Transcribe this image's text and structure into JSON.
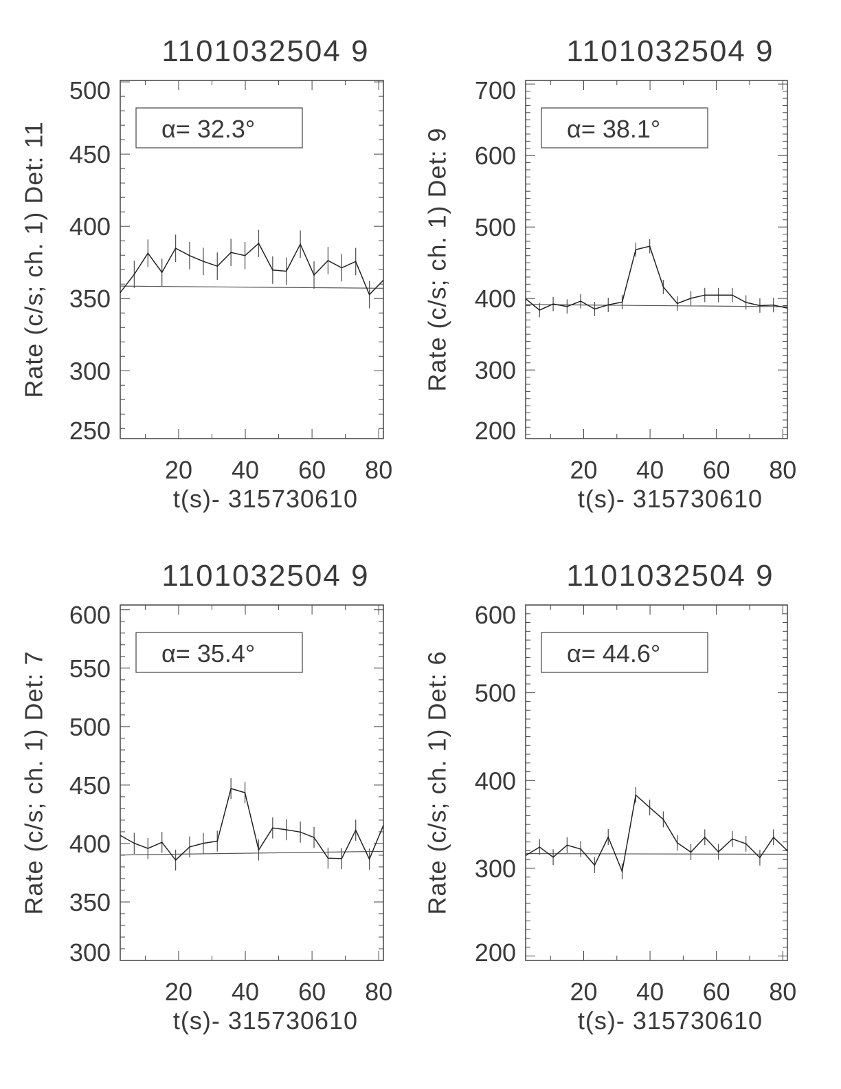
{
  "chart_data": [
    {
      "type": "line",
      "title": "1101032504 9",
      "xlabel": "t(s)- 315730610",
      "ylabel": "Rate (c/s; ch. 1) Det: 11",
      "legend": "α= 32.3°",
      "legend_placement": "top-left",
      "xlim": [
        2.5,
        81.4
      ],
      "ylim": [
        253,
        501
      ],
      "xticks": [
        20,
        40,
        60,
        80
      ],
      "yticks": [
        250,
        300,
        350,
        400,
        450,
        500
      ],
      "y_minor_step": 10,
      "x": [
        2.5,
        6.7,
        10.8,
        15.0,
        19.1,
        23.3,
        27.4,
        31.6,
        35.7,
        39.9,
        44.0,
        48.2,
        52.3,
        56.5,
        60.6,
        64.8,
        68.9,
        73.1,
        77.2,
        81.4
      ],
      "values": [
        354.1,
        366.7,
        381.4,
        368.1,
        384.8,
        379.7,
        375.7,
        372.4,
        381.9,
        379.7,
        388.2,
        369.7,
        368.9,
        387.6,
        366.3,
        376.3,
        371.3,
        375.6,
        352.7,
        362.7
      ],
      "error": 9.5,
      "background": [
        358.6,
        357.1
      ]
    },
    {
      "type": "line",
      "title": "1101032504 9",
      "xlabel": "t(s)- 315730610",
      "ylabel": "Rate (c/s; ch. 1) Det: 9",
      "legend": "α= 38.1°",
      "legend_placement": "top-left",
      "xlim": [
        2.5,
        81.4
      ],
      "ylim": [
        204,
        705
      ],
      "xticks": [
        20,
        40,
        60,
        80
      ],
      "yticks": [
        200,
        300,
        400,
        500,
        600,
        700
      ],
      "y_minor_step": 10,
      "x": [
        2.5,
        6.7,
        10.8,
        15.0,
        19.1,
        23.3,
        27.4,
        31.6,
        35.7,
        39.9,
        44.0,
        48.2,
        52.3,
        56.5,
        60.6,
        64.8,
        68.9,
        73.1,
        77.2,
        81.4
      ],
      "values": [
        399.7,
        383.7,
        392.3,
        388.8,
        396.2,
        385.3,
        391.1,
        394.9,
        468.3,
        473.1,
        416.1,
        393.0,
        400.3,
        404.8,
        404.8,
        404.8,
        394.5,
        390.1,
        390.7,
        386.5
      ],
      "error": 10,
      "background": [
        391.6,
        388.5
      ]
    },
    {
      "type": "line",
      "title": "1101032504 9",
      "xlabel": "t(s)- 315730610",
      "ylabel": "Rate (c/s; ch. 1) Det: 7",
      "legend": "α= 35.4°",
      "legend_placement": "top-left",
      "xlim": [
        2.5,
        81.4
      ],
      "ylim": [
        300,
        604
      ],
      "xticks": [
        20,
        40,
        60,
        80
      ],
      "yticks": [
        300,
        350,
        400,
        450,
        500,
        550,
        600
      ],
      "y_minor_step": 10,
      "x": [
        2.5,
        6.7,
        10.8,
        15.0,
        19.1,
        23.3,
        27.4,
        31.6,
        35.7,
        39.9,
        44.0,
        48.2,
        52.3,
        56.5,
        60.6,
        64.8,
        68.9,
        73.1,
        77.2,
        81.4
      ],
      "values": [
        406.9,
        400.2,
        395.8,
        401.0,
        385.8,
        397.1,
        400.2,
        402.1,
        447.0,
        443.5,
        394.5,
        413.3,
        411.8,
        409.8,
        405.2,
        387.5,
        387.1,
        411.4,
        386.6,
        415.6
      ],
      "error": 9,
      "background": [
        390.2,
        393.3
      ]
    },
    {
      "type": "line",
      "title": "1101032504 9",
      "xlabel": "t(s)- 315730610",
      "ylabel": "Rate (c/s; ch. 1) Det: 6",
      "legend": "α= 44.6°",
      "legend_placement": "top-left",
      "xlim": [
        2.5,
        81.4
      ],
      "ylim": [
        195,
        600
      ],
      "xticks": [
        20,
        40,
        60,
        80
      ],
      "yticks": [
        200,
        300,
        400,
        500,
        600
      ],
      "y_minor_step": 10,
      "x": [
        2.5,
        6.7,
        10.8,
        15.0,
        19.1,
        23.3,
        27.4,
        31.6,
        35.7,
        39.9,
        44.0,
        48.2,
        52.3,
        56.5,
        60.6,
        64.8,
        68.9,
        73.1,
        77.2,
        81.4
      ],
      "values": [
        314.5,
        324.2,
        312.7,
        326.4,
        321.9,
        303.6,
        335.6,
        296.4,
        383.4,
        369.2,
        355.7,
        329.0,
        318.4,
        335.3,
        318.7,
        333.4,
        327.9,
        312.1,
        335.3,
        320.0
      ],
      "error": 9,
      "background": [
        316.7,
        316.0
      ]
    }
  ],
  "colors": {
    "line": "#222222",
    "axis": "#444444",
    "text": "#3a3a3a"
  }
}
